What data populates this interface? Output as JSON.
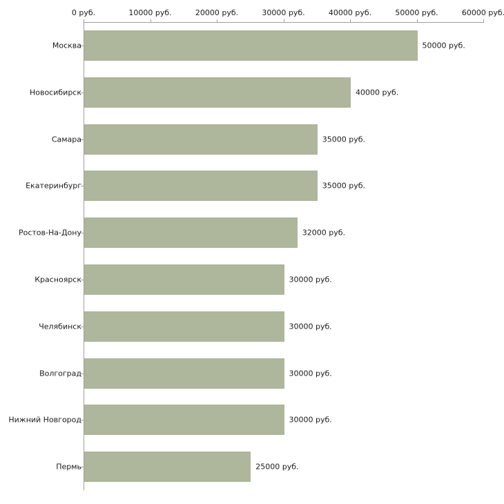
{
  "chart_data": {
    "type": "bar",
    "orientation": "horizontal",
    "title": "",
    "xlabel": "",
    "ylabel": "",
    "categories": [
      "Москва",
      "Новосибирск",
      "Самара",
      "Екатеринбург",
      "Ростов-На-Дону",
      "Красноярск",
      "Челябинск",
      "Волгоград",
      "Нижний Новгород",
      "Пермь"
    ],
    "values": [
      50000,
      40000,
      35000,
      35000,
      32000,
      30000,
      30000,
      30000,
      30000,
      25000
    ],
    "value_labels": [
      "50000 руб.",
      "40000 руб.",
      "35000 руб.",
      "35000 руб.",
      "32000 руб.",
      "30000 руб.",
      "30000 руб.",
      "30000 руб.",
      "30000 руб.",
      "25000 руб."
    ],
    "x_ticks": [
      0,
      10000,
      20000,
      30000,
      40000,
      50000,
      60000
    ],
    "x_tick_labels": [
      "0 руб.",
      "10000 руб.",
      "20000 руб.",
      "30000 руб.",
      "40000 руб.",
      "50000 руб.",
      "60000 руб."
    ],
    "xlim": [
      0,
      60000
    ],
    "bar_color": "#aeb69b",
    "axis_color": "#9e9e9e",
    "text_color": "#1a1a1a",
    "background_color": "#ffffff",
    "grid": false,
    "legend": false,
    "tick_position": "top"
  }
}
